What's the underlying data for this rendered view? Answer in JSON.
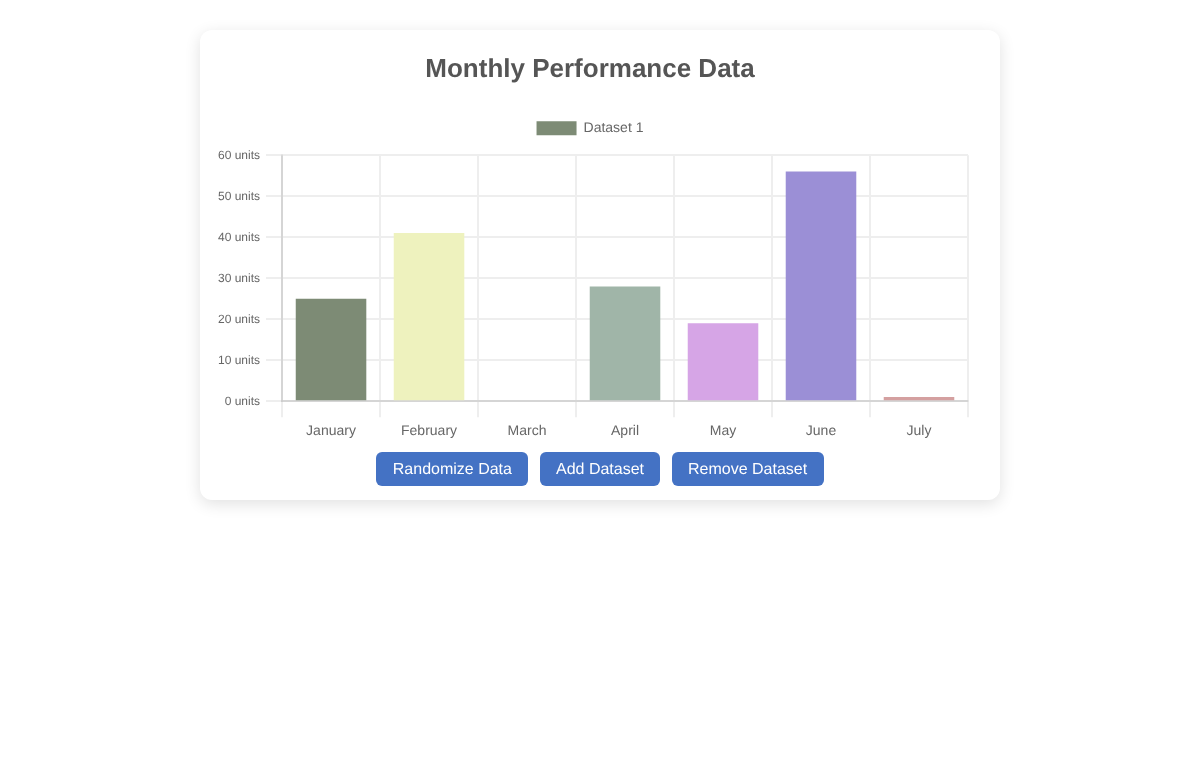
{
  "chart_data": {
    "type": "bar",
    "title": "Monthly Performance Data",
    "categories": [
      "January",
      "February",
      "March",
      "April",
      "May",
      "June",
      "July"
    ],
    "series": [
      {
        "name": "Dataset 1",
        "values": [
          25,
          41,
          0,
          28,
          19,
          56,
          1
        ],
        "colors": [
          "#7d8b75",
          "#eef2be",
          "#c8c8c8",
          "#a0b5a8",
          "#d6a5e6",
          "#9b8fd6",
          "#d4a0a0"
        ]
      }
    ],
    "ylim": [
      0,
      60
    ],
    "yticks": [
      {
        "value": 0,
        "label": "0 units"
      },
      {
        "value": 10,
        "label": "10 units"
      },
      {
        "value": 20,
        "label": "20 units"
      },
      {
        "value": 30,
        "label": "30 units"
      },
      {
        "value": 40,
        "label": "40 units"
      },
      {
        "value": 50,
        "label": "50 units"
      },
      {
        "value": 60,
        "label": "60 units"
      }
    ],
    "grid": true,
    "legend": "top",
    "annotations": [
      "Randomize Data",
      "Add Dataset",
      "Remove Dataset"
    ]
  }
}
